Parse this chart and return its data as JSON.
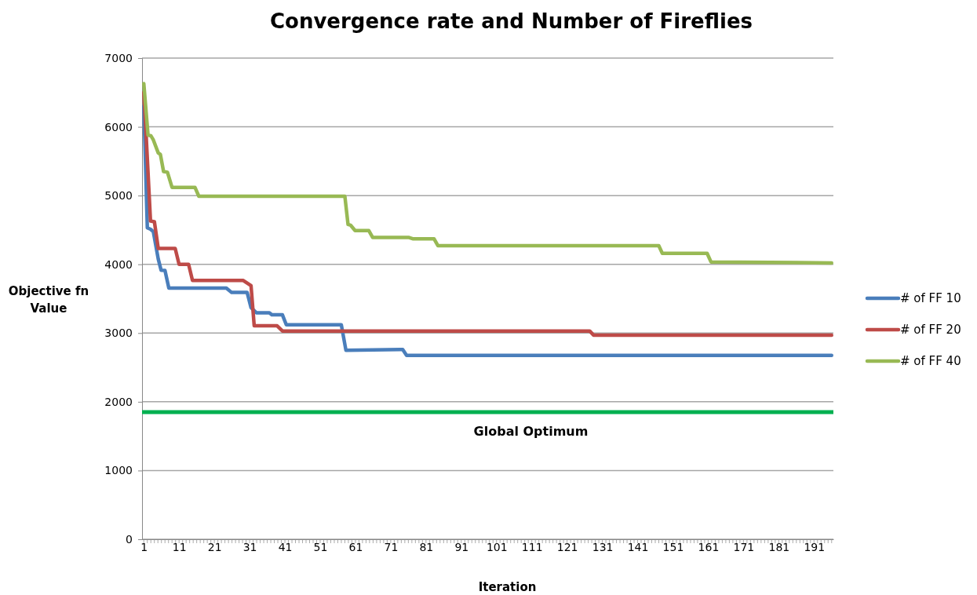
{
  "chart_data": {
    "type": "line",
    "title": "Convergence rate and Number of Fireflies",
    "xlabel": "Iteration",
    "ylabel": "Objective fn Value",
    "xlim": [
      0.5,
      196.5
    ],
    "xticks": [
      1,
      11,
      21,
      31,
      41,
      51,
      61,
      71,
      81,
      91,
      101,
      111,
      121,
      131,
      141,
      151,
      161,
      171,
      181,
      191
    ],
    "ylim": [
      0,
      7000
    ],
    "yticks": [
      0,
      1000,
      2000,
      3000,
      4000,
      5000,
      6000,
      7000
    ],
    "grid": "y",
    "legend": "right",
    "marker": "none",
    "line_style": "solid",
    "series": [
      {
        "name": "# of FF 10",
        "color": "#4a7ebb",
        "x": [
          1,
          2,
          2.9,
          3.7,
          5.1,
          5.9,
          7,
          8.1,
          24.4,
          25.9,
          30.3,
          31.4,
          32.9,
          36.6,
          37.3,
          40.3,
          41.4,
          57,
          58.3,
          74.4,
          75.5,
          196
        ],
        "values": [
          6300,
          4530,
          4510,
          4475,
          4075,
          3915,
          3910,
          3655,
          3655,
          3590,
          3590,
          3370,
          3295,
          3295,
          3265,
          3265,
          3120,
          3120,
          2750,
          2760,
          2675,
          2675
        ]
      },
      {
        "name": "# of FF 20",
        "color": "#be4b48",
        "x": [
          1,
          1.7,
          2.9,
          4,
          5.1,
          9.9,
          11,
          13.7,
          14.8,
          29.2,
          31.4,
          32.3,
          38.8,
          40.3,
          127.4,
          128.5,
          196
        ],
        "values": [
          6500,
          5840,
          4630,
          4620,
          4230,
          4230,
          4000,
          4000,
          3765,
          3765,
          3690,
          3105,
          3105,
          3030,
          3030,
          2970,
          2970
        ]
      },
      {
        "name": "# of FF 40",
        "color": "#98b954",
        "x": [
          1,
          2.2,
          3,
          3.7,
          5.1,
          5.7,
          6.6,
          7.7,
          9,
          15.5,
          16.6,
          58,
          58.9,
          59.6,
          60.9,
          64.8,
          65.9,
          76.2,
          77.4,
          83.3,
          84.4,
          147,
          148,
          160.7,
          161.8,
          196
        ],
        "values": [
          6630,
          5880,
          5870,
          5810,
          5620,
          5600,
          5350,
          5340,
          5120,
          5120,
          4990,
          4990,
          4580,
          4570,
          4490,
          4490,
          4390,
          4390,
          4370,
          4370,
          4270,
          4270,
          4160,
          4160,
          4035,
          4020
        ]
      }
    ],
    "ref_lines": [
      {
        "axis": "y",
        "value": 1850,
        "label": "Global Optimum",
        "color": "#00b050",
        "line_style": "solid"
      }
    ]
  }
}
